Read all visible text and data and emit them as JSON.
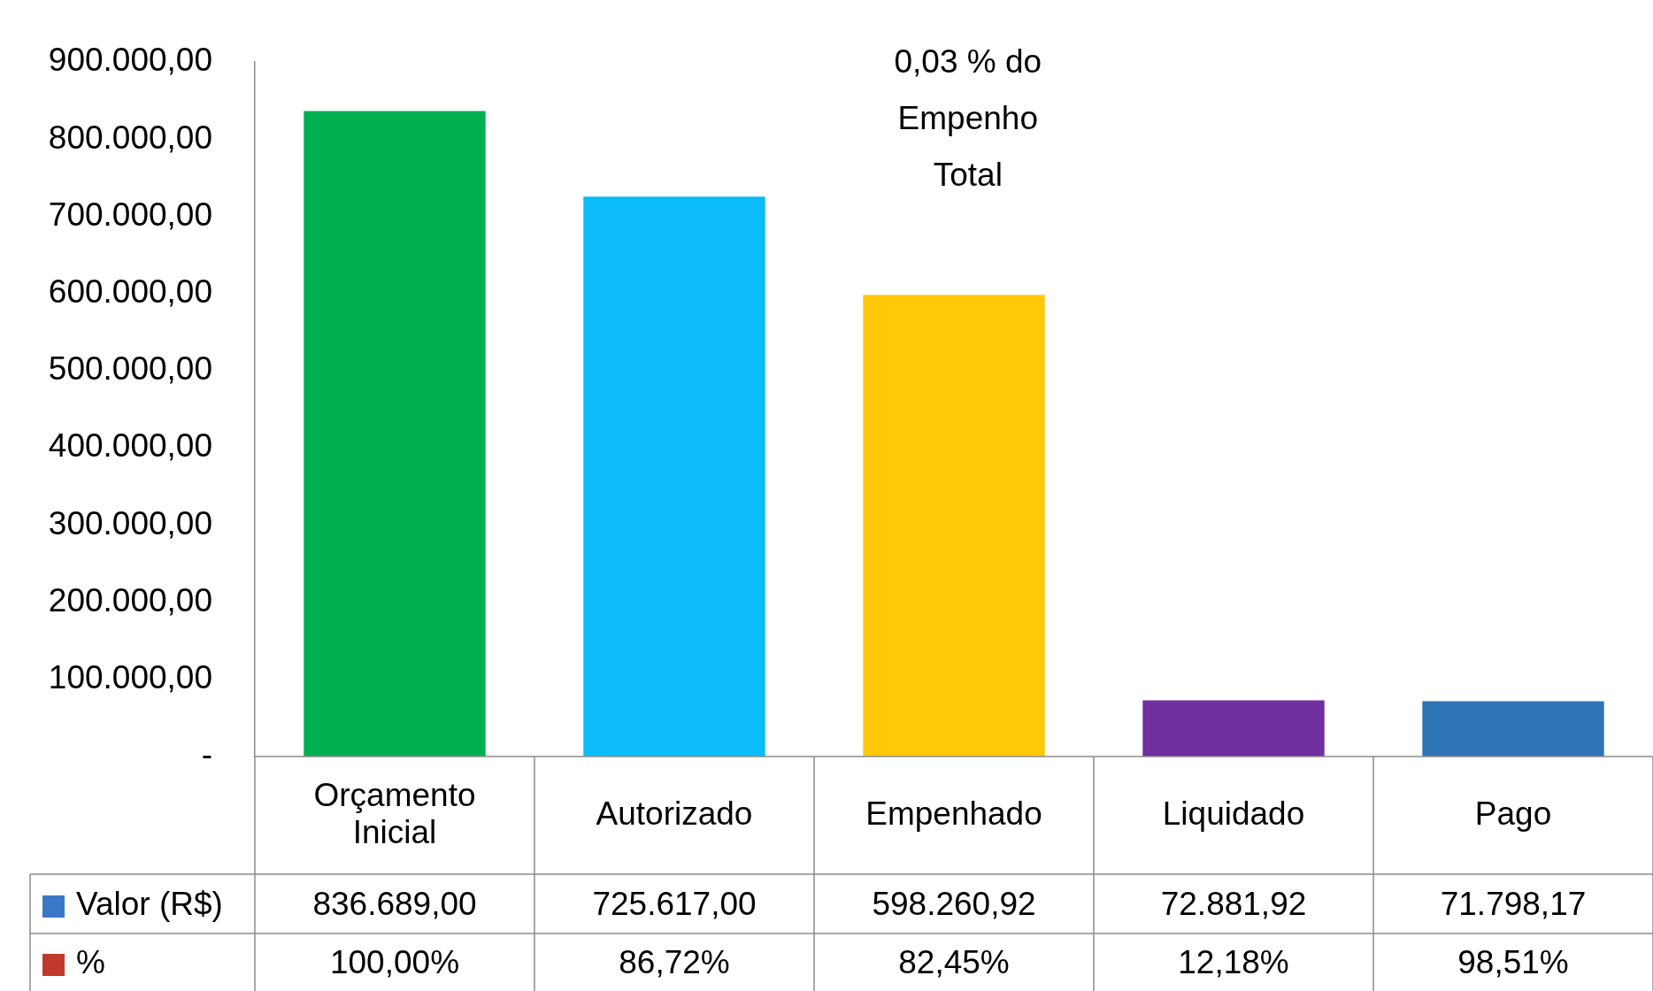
{
  "chart_data": {
    "type": "bar",
    "categories": [
      "Orçamento Inicial",
      "Autorizado",
      "Empenhado",
      "Liquidado",
      "Pago"
    ],
    "series": [
      {
        "name": "Valor (R$)",
        "color": "#3a78c8",
        "colors": [
          "#00b050",
          "#0bbcf8",
          "#ffc90a",
          "#7030a0",
          "#2e75b6"
        ],
        "values": [
          836689.0,
          725617.0,
          598260.92,
          72881.92,
          71798.17
        ],
        "value_labels": [
          "836.689,00",
          "725.617,00",
          "598.260,92",
          "72.881,92",
          "71.798,17"
        ]
      },
      {
        "name": "%",
        "color": "#c0392b",
        "values": [
          100.0,
          86.72,
          82.45,
          12.18,
          98.51
        ],
        "value_labels": [
          "100,00%",
          "86,72%",
          "82,45%",
          "12,18%",
          "98,51%"
        ]
      }
    ],
    "ylim": [
      0,
      900000
    ],
    "yticks": [
      {
        "value": 0,
        "label": "-"
      },
      {
        "value": 100000,
        "label": "100.000,00"
      },
      {
        "value": 200000,
        "label": "200.000,00"
      },
      {
        "value": 300000,
        "label": "300.000,00"
      },
      {
        "value": 400000,
        "label": "400.000,00"
      },
      {
        "value": 500000,
        "label": "500.000,00"
      },
      {
        "value": 600000,
        "label": "600.000,00"
      },
      {
        "value": 700000,
        "label": "700.000,00"
      },
      {
        "value": 800000,
        "label": "800.000,00"
      },
      {
        "value": 900000,
        "label": "900.000,00"
      }
    ],
    "grid": false,
    "legend": "bottom left",
    "annotations": [
      "0,03 % do Empenho Total"
    ]
  }
}
